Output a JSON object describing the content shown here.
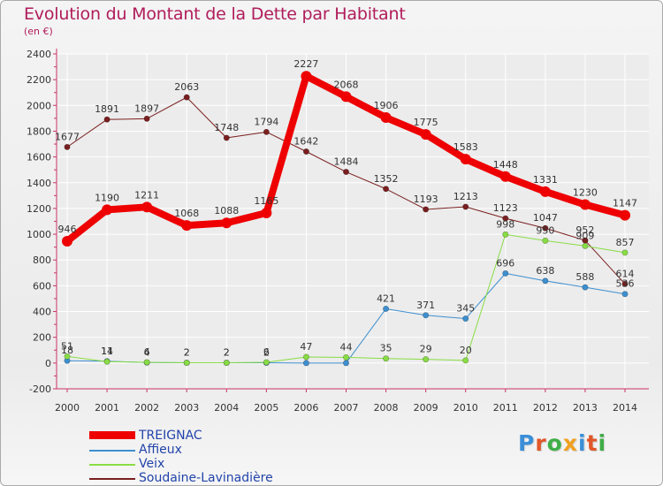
{
  "title": "Evolution du Montant de la Dette par Habitant",
  "unit": "(en €)",
  "logo": {
    "text": "Proxiti",
    "letter_colors": [
      "#3a8fd8",
      "#e0582a",
      "#3fae48",
      "#f0a020",
      "#3a8fd8",
      "#e0582a",
      "#3fae48"
    ]
  },
  "chart_data": {
    "type": "line",
    "x": [
      "2000",
      "2001",
      "2002",
      "2003",
      "2004",
      "2005",
      "2006",
      "2007",
      "2008",
      "2009",
      "2010",
      "2011",
      "2012",
      "2013",
      "2014"
    ],
    "ylim": [
      -200,
      2400
    ],
    "yticks": [
      "-200",
      "0",
      "200",
      "400",
      "600",
      "800",
      "1000",
      "1200",
      "1400",
      "1600",
      "1800",
      "2000",
      "2200",
      "2400"
    ],
    "grid": true,
    "legend_position": "bottom-left",
    "series": [
      {
        "name": "TREIGNAC",
        "color": "#ee0000",
        "line_width": 8,
        "values": [
          946,
          1190,
          1211,
          1068,
          1088,
          1165,
          2227,
          2068,
          1906,
          1775,
          1583,
          1448,
          1331,
          1230,
          1147
        ],
        "labels": [
          "946",
          "1190",
          "1211",
          "1068",
          "1088",
          "1165",
          "2227",
          "2068",
          "1906",
          "1775",
          "1583",
          "1448",
          "1331",
          "1230",
          "1147"
        ]
      },
      {
        "name": "Affieux",
        "color": "#3d8fd0",
        "line_width": 1,
        "values": [
          18,
          14,
          4,
          2,
          2,
          2,
          0,
          0,
          421,
          371,
          345,
          696,
          638,
          588,
          536
        ],
        "labels": [
          "18",
          "14",
          "4",
          "2",
          "2",
          "2",
          "",
          "",
          "421",
          "371",
          "345",
          "696",
          "638",
          "588",
          "536"
        ]
      },
      {
        "name": "Veix",
        "color": "#88dd44",
        "line_width": 1,
        "values": [
          51,
          11,
          6,
          2,
          2,
          6,
          47,
          44,
          35,
          29,
          20,
          998,
          950,
          909,
          857
        ],
        "labels": [
          "51",
          "11",
          "6",
          "2",
          "2",
          "6",
          "47",
          "44",
          "35",
          "29",
          "20",
          "998",
          "950",
          "909",
          "857"
        ]
      },
      {
        "name": "Soudaine-Lavinadière",
        "color": "#7a1f1f",
        "line_width": 1,
        "values": [
          1677,
          1891,
          1897,
          2063,
          1748,
          1794,
          1642,
          1484,
          1352,
          1193,
          1213,
          1123,
          1047,
          952,
          614
        ],
        "labels": [
          "1677",
          "1891",
          "1897",
          "2063",
          "1748",
          "1794",
          "1642",
          "1484",
          "1352",
          "1193",
          "1213",
          "1123",
          "1047",
          "952",
          "614"
        ]
      }
    ]
  }
}
